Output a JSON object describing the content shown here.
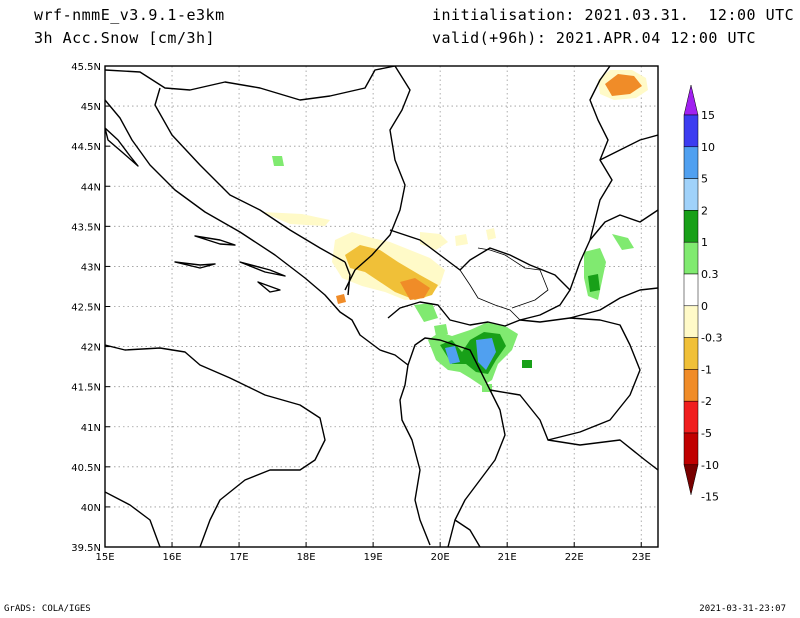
{
  "header": {
    "model": "wrf-nmmE_v3.9.1-e3km",
    "field": "3h Acc.Snow [cm/3h]",
    "initialisation": "initialisation: 2021.03.31.  12:00 UTC",
    "valid": "valid(+96h): 2021.APR.04 12:00 UTC"
  },
  "footer": {
    "credit": "GrADS: COLA/IGES",
    "timestamp": "2021-03-31-23:07"
  },
  "map": {
    "lon_range": [
      15,
      23.25
    ],
    "lat_range": [
      39.5,
      45.5
    ],
    "lon_ticks": [
      "15E",
      "16E",
      "17E",
      "18E",
      "19E",
      "20E",
      "21E",
      "22E",
      "23E"
    ],
    "lat_ticks": [
      "45.5N",
      "45N",
      "44.5N",
      "44N",
      "43.5N",
      "43N",
      "42.5N",
      "42N",
      "41.5N",
      "41N",
      "40.5N",
      "40N",
      "39.5N"
    ],
    "gridlines": "dotted"
  },
  "colorbar": {
    "labels": [
      "15",
      "10",
      "5",
      "2",
      "1",
      "0.3",
      "0",
      "-0.3",
      "-1",
      "-2",
      "-5",
      "-10",
      "-15"
    ],
    "colors": [
      "#a020f0",
      "#3c3cf0",
      "#50a0f0",
      "#a0d2fa",
      "#18a018",
      "#80ea70",
      "#ffffff",
      "#fffac8",
      "#f0c038",
      "#f08c28",
      "#f01e1e",
      "#c00000",
      "#780000"
    ]
  }
}
